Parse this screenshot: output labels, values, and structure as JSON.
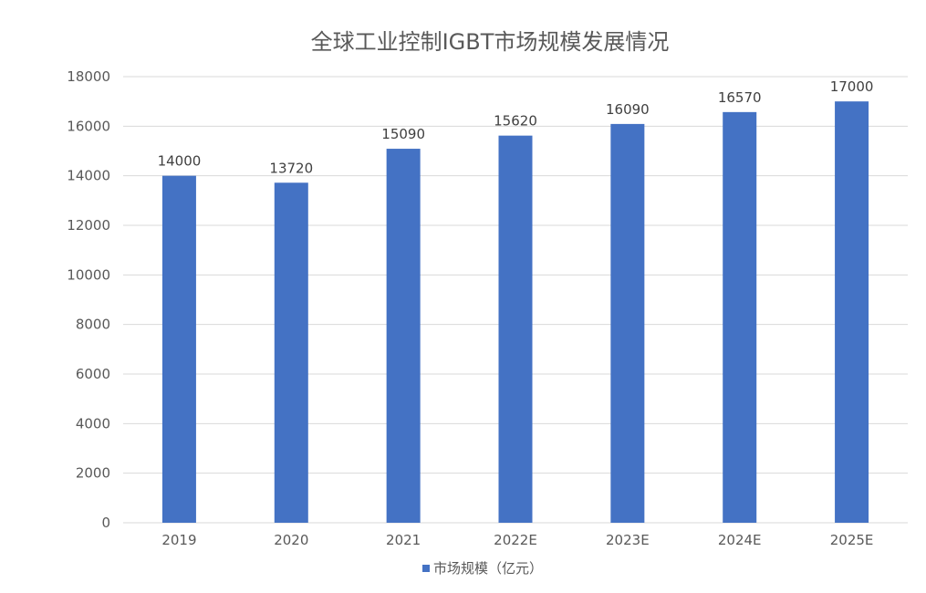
{
  "chart_data": {
    "type": "bar",
    "title": "全球工业控制IGBT市场规模发展情况",
    "xlabel": "",
    "ylabel": "",
    "categories": [
      "2019",
      "2020",
      "2021",
      "2022E",
      "2023E",
      "2024E",
      "2025E"
    ],
    "series": [
      {
        "name": "市场规模（亿元）",
        "values": [
          14000,
          13720,
          15090,
          15620,
          16090,
          16570,
          17000
        ],
        "color": "#4472C4"
      }
    ],
    "data_labels": [
      "14000",
      "13720",
      "15090",
      "15620",
      "16090",
      "16570",
      "17000"
    ],
    "ylim": [
      0,
      18000
    ],
    "yticks": [
      0,
      2000,
      4000,
      6000,
      8000,
      10000,
      12000,
      14000,
      16000,
      18000
    ],
    "ytick_labels": [
      "0",
      "2000",
      "4000",
      "6000",
      "8000",
      "10000",
      "12000",
      "14000",
      "16000",
      "18000"
    ],
    "grid": true,
    "grid_color": "#D9D9D9",
    "legend_position": "bottom"
  }
}
